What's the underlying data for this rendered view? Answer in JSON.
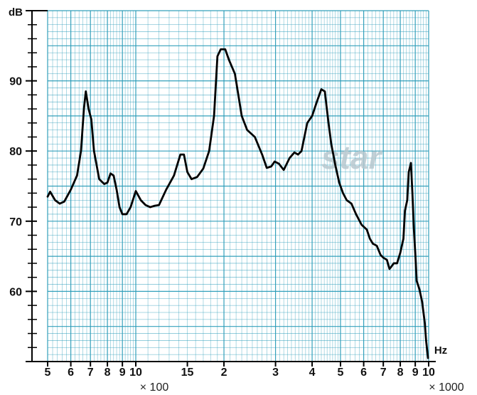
{
  "chart_data": {
    "type": "line",
    "x_scale": "log",
    "xlim": [
      500,
      10000
    ],
    "ylim": [
      50,
      100
    ],
    "grid": true,
    "ylabel": "dB",
    "xlabel": "Hz",
    "y_ticks": [
      60,
      70,
      80,
      90
    ],
    "x_tick_labels": [
      {
        "label": "5",
        "x": 500
      },
      {
        "label": "6",
        "x": 600
      },
      {
        "label": "7",
        "x": 700
      },
      {
        "label": "8",
        "x": 800
      },
      {
        "label": "9",
        "x": 900
      },
      {
        "label": "10",
        "x": 1000
      },
      {
        "label": "15",
        "x": 1500
      },
      {
        "label": "2",
        "x": 2000
      },
      {
        "label": "3",
        "x": 3000
      },
      {
        "label": "4",
        "x": 4000
      },
      {
        "label": "5",
        "x": 5000
      },
      {
        "label": "6",
        "x": 6000
      },
      {
        "label": "7",
        "x": 7000
      },
      {
        "label": "8",
        "x": 8000
      },
      {
        "label": "9",
        "x": 9000
      },
      {
        "label": "10",
        "x": 10000
      }
    ],
    "multipliers": [
      "× 100",
      "× 1000"
    ],
    "series": [
      {
        "color": "#000000",
        "points": [
          [
            500,
            73.5
          ],
          [
            510,
            74.2
          ],
          [
            530,
            73.0
          ],
          [
            550,
            72.5
          ],
          [
            570,
            72.8
          ],
          [
            600,
            74.5
          ],
          [
            630,
            76.5
          ],
          [
            650,
            80
          ],
          [
            665,
            86
          ],
          [
            675,
            88.5
          ],
          [
            690,
            86
          ],
          [
            705,
            84.5
          ],
          [
            720,
            80
          ],
          [
            750,
            76
          ],
          [
            780,
            75.3
          ],
          [
            800,
            75.5
          ],
          [
            820,
            76.8
          ],
          [
            840,
            76.5
          ],
          [
            860,
            74.5
          ],
          [
            880,
            72.0
          ],
          [
            900,
            71.0
          ],
          [
            930,
            71.0
          ],
          [
            960,
            72.0
          ],
          [
            1000,
            74.3
          ],
          [
            1040,
            73.0
          ],
          [
            1080,
            72.3
          ],
          [
            1120,
            72.0
          ],
          [
            1160,
            72.2
          ],
          [
            1200,
            72.3
          ],
          [
            1270,
            74.5
          ],
          [
            1350,
            76.5
          ],
          [
            1420,
            79.5
          ],
          [
            1460,
            79.5
          ],
          [
            1500,
            77
          ],
          [
            1550,
            76
          ],
          [
            1620,
            76.3
          ],
          [
            1700,
            77.5
          ],
          [
            1780,
            80
          ],
          [
            1850,
            85
          ],
          [
            1900,
            93.5
          ],
          [
            1950,
            94.5
          ],
          [
            2020,
            94.5
          ],
          [
            2080,
            93
          ],
          [
            2180,
            91
          ],
          [
            2300,
            85
          ],
          [
            2400,
            83
          ],
          [
            2550,
            82
          ],
          [
            2700,
            79.5
          ],
          [
            2800,
            77.6
          ],
          [
            2900,
            77.8
          ],
          [
            2980,
            78.5
          ],
          [
            3080,
            78.2
          ],
          [
            3200,
            77.3
          ],
          [
            3350,
            79
          ],
          [
            3480,
            79.8
          ],
          [
            3580,
            79.5
          ],
          [
            3680,
            80
          ],
          [
            3850,
            84
          ],
          [
            4000,
            85
          ],
          [
            4150,
            87
          ],
          [
            4300,
            88.8
          ],
          [
            4420,
            88.5
          ],
          [
            4550,
            84
          ],
          [
            4650,
            81
          ],
          [
            4800,
            78
          ],
          [
            4950,
            75.5
          ],
          [
            5100,
            74
          ],
          [
            5250,
            73
          ],
          [
            5450,
            72.5
          ],
          [
            5650,
            71
          ],
          [
            5900,
            69.5
          ],
          [
            6150,
            68.8
          ],
          [
            6300,
            67.5
          ],
          [
            6450,
            66.8
          ],
          [
            6650,
            66.5
          ],
          [
            6850,
            65.2
          ],
          [
            7000,
            64.8
          ],
          [
            7200,
            64.5
          ],
          [
            7350,
            63.2
          ],
          [
            7450,
            63.5
          ],
          [
            7600,
            64
          ],
          [
            7800,
            64
          ],
          [
            8000,
            65.5
          ],
          [
            8200,
            67.5
          ],
          [
            8300,
            71.5
          ],
          [
            8450,
            73
          ],
          [
            8550,
            77
          ],
          [
            8700,
            78.3
          ],
          [
            8800,
            74
          ],
          [
            8900,
            69
          ],
          [
            9000,
            65.5
          ],
          [
            9100,
            61.5
          ],
          [
            9300,
            60.3
          ],
          [
            9500,
            58.5
          ],
          [
            9700,
            55.5
          ],
          [
            9800,
            53
          ],
          [
            9950,
            50.5
          ]
        ]
      }
    ]
  },
  "watermark": "star"
}
